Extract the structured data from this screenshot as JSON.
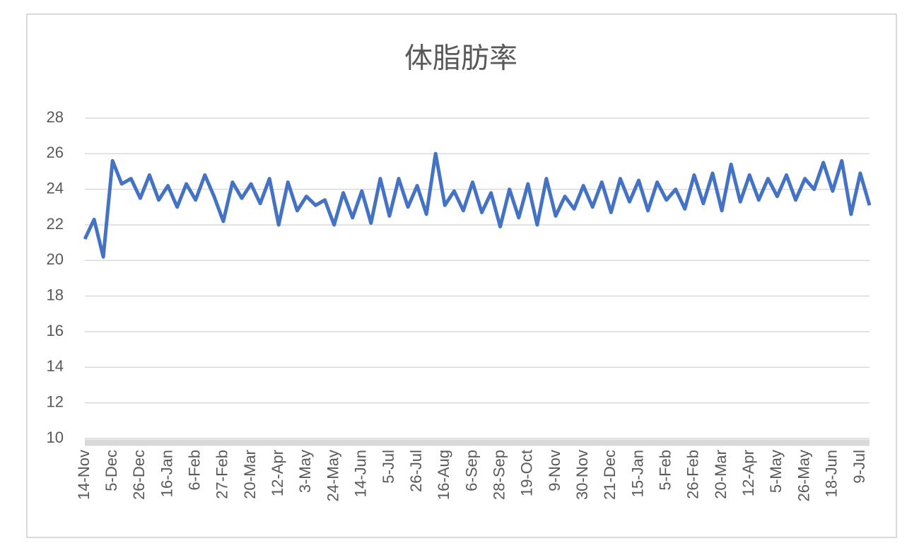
{
  "chart_data": {
    "type": "line",
    "title": "体脂肪率",
    "categories": [
      "14-Nov",
      null,
      null,
      "5-Dec",
      null,
      null,
      "26-Dec",
      null,
      null,
      "16-Jan",
      null,
      null,
      "6-Feb",
      null,
      null,
      "27-Feb",
      null,
      null,
      "20-Mar",
      null,
      null,
      "12-Apr",
      null,
      null,
      "3-May",
      null,
      null,
      "24-May",
      null,
      null,
      "14-Jun",
      null,
      null,
      "5-Jul",
      null,
      null,
      "26-Jul",
      null,
      null,
      "16-Aug",
      null,
      null,
      "6-Sep",
      null,
      null,
      "28-Sep",
      null,
      null,
      "19-Oct",
      null,
      null,
      "9-Nov",
      null,
      null,
      "30-Nov",
      null,
      null,
      "21-Dec",
      null,
      null,
      "15-Jan",
      null,
      null,
      "5-Feb",
      null,
      null,
      "26-Feb",
      null,
      null,
      "20-Mar",
      null,
      null,
      "12-Apr",
      null,
      null,
      "5-May",
      null,
      null,
      "26-May",
      null,
      null,
      "18-Jun",
      null,
      null,
      "9-Jul",
      null
    ],
    "series": [
      {
        "color": "#4472c4",
        "values": [
          21.2,
          22.3,
          20.2,
          25.6,
          24.3,
          24.6,
          23.5,
          24.8,
          23.4,
          24.2,
          23.0,
          24.3,
          23.4,
          24.8,
          23.6,
          22.2,
          24.4,
          23.5,
          24.3,
          23.2,
          24.6,
          22.0,
          24.4,
          22.8,
          23.6,
          23.1,
          23.4,
          22.0,
          23.8,
          22.4,
          23.9,
          22.1,
          24.6,
          22.5,
          24.6,
          23.0,
          24.2,
          22.6,
          26.0,
          23.1,
          23.9,
          22.8,
          24.4,
          22.7,
          23.8,
          21.9,
          24.0,
          22.4,
          24.3,
          22.0,
          24.6,
          22.5,
          23.6,
          22.9,
          24.2,
          23.0,
          24.4,
          22.7,
          24.6,
          23.3,
          24.5,
          22.8,
          24.4,
          23.4,
          24.0,
          22.9,
          24.8,
          23.2,
          24.9,
          22.8,
          25.4,
          23.3,
          24.8,
          23.4,
          24.6,
          23.6,
          24.8,
          23.4,
          24.6,
          24.0,
          25.5,
          23.9,
          25.6,
          22.6,
          24.9,
          23.1
        ]
      }
    ],
    "ylim": [
      10,
      28
    ],
    "yticks": [
      10,
      12,
      14,
      16,
      18,
      20,
      22,
      24,
      26,
      28
    ],
    "grid": true
  }
}
